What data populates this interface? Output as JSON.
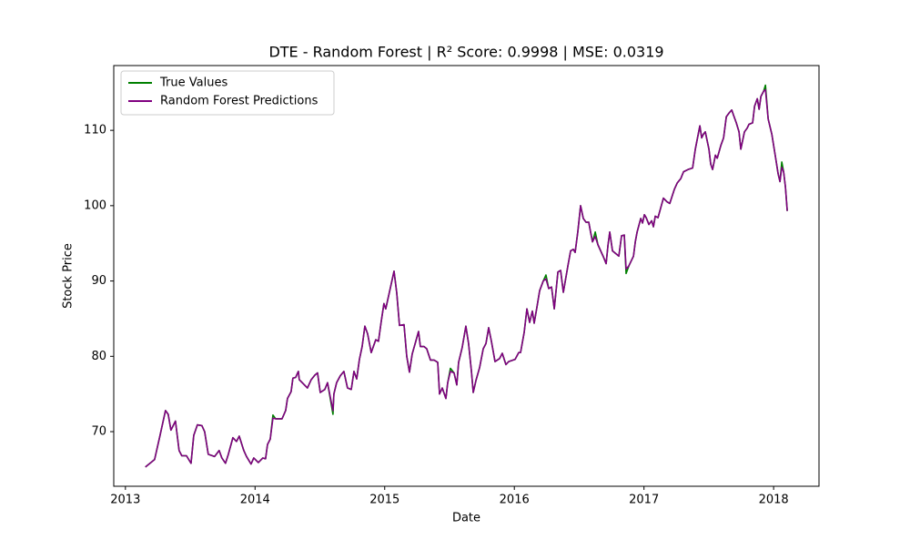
{
  "chart_data": {
    "type": "line",
    "title": "DTE - Random Forest | R² Score: 0.9998 | MSE: 0.0319",
    "xlabel": "Date",
    "ylabel": "Stock Price",
    "x": [
      2013.154,
      2013.225,
      2013.267,
      2013.309,
      2013.33,
      2013.351,
      2013.386,
      2013.414,
      2013.435,
      2013.471,
      2013.506,
      2013.527,
      2013.555,
      2013.59,
      2013.611,
      2013.639,
      2013.688,
      2013.723,
      2013.744,
      2013.772,
      2013.794,
      2013.829,
      2013.857,
      2013.878,
      2013.913,
      2013.934,
      2013.969,
      2013.99,
      2014.025,
      2014.06,
      2014.081,
      2014.096,
      2014.117,
      2014.138,
      2014.159,
      2014.208,
      2014.236,
      2014.25,
      2014.278,
      2014.292,
      2014.313,
      2014.334,
      2014.341,
      2014.404,
      2014.433,
      2014.461,
      2014.482,
      2014.503,
      2014.538,
      2014.559,
      2014.601,
      2014.608,
      2014.629,
      2014.657,
      2014.685,
      2014.713,
      2014.742,
      2014.763,
      2014.784,
      2014.805,
      2014.826,
      2014.847,
      2014.868,
      2014.896,
      2014.931,
      2014.952,
      2014.973,
      2014.994,
      2015.008,
      2015.072,
      2015.093,
      2015.114,
      2015.149,
      2015.17,
      2015.191,
      2015.212,
      2015.24,
      2015.261,
      2015.275,
      2015.303,
      2015.324,
      2015.353,
      2015.381,
      2015.409,
      2015.423,
      2015.444,
      2015.472,
      2015.486,
      2015.507,
      2015.535,
      2015.556,
      2015.57,
      2015.598,
      2015.626,
      2015.647,
      2015.669,
      2015.683,
      2015.704,
      2015.732,
      2015.76,
      2015.781,
      2015.802,
      2015.823,
      2015.851,
      2015.886,
      2015.907,
      2015.935,
      2015.956,
      2016.006,
      2016.034,
      2016.048,
      2016.076,
      2016.097,
      2016.118,
      2016.139,
      2016.153,
      2016.174,
      2016.195,
      2016.223,
      2016.244,
      2016.265,
      2016.287,
      2016.308,
      2016.336,
      2016.357,
      2016.378,
      2016.413,
      2016.434,
      2016.455,
      2016.469,
      2016.49,
      2016.511,
      2016.532,
      2016.553,
      2016.574,
      2016.588,
      2016.603,
      2016.624,
      2016.645,
      2016.687,
      2016.708,
      2016.722,
      2016.736,
      2016.757,
      2016.806,
      2016.827,
      2016.848,
      2016.862,
      2016.883,
      2016.919,
      2016.933,
      2016.947,
      2016.975,
      2016.989,
      2017.003,
      2017.017,
      2017.038,
      2017.059,
      2017.073,
      2017.087,
      2017.108,
      2017.129,
      2017.15,
      2017.178,
      2017.199,
      2017.235,
      2017.256,
      2017.284,
      2017.305,
      2017.34,
      2017.375,
      2017.396,
      2017.431,
      2017.445,
      2017.459,
      2017.473,
      2017.501,
      2017.515,
      2017.529,
      2017.551,
      2017.565,
      2017.593,
      2017.614,
      2017.635,
      2017.656,
      2017.677,
      2017.691,
      2017.712,
      2017.733,
      2017.747,
      2017.775,
      2017.796,
      2017.81,
      2017.838,
      2017.853,
      2017.874,
      2017.888,
      2017.902,
      2017.923,
      2017.937,
      2017.958,
      2017.986,
      2018.014,
      2018.035,
      2018.049,
      2018.063,
      2018.077,
      2018.091,
      2018.105
    ],
    "series": [
      {
        "name": "True Values",
        "color": "#008000",
        "values": [
          65.3,
          66.3,
          69.5,
          72.8,
          72.3,
          70.2,
          71.4,
          67.5,
          66.8,
          66.8,
          65.8,
          69.5,
          70.9,
          70.8,
          70.0,
          67.0,
          66.7,
          67.5,
          66.5,
          65.8,
          67.0,
          69.2,
          68.7,
          69.4,
          67.5,
          66.7,
          65.7,
          66.5,
          65.9,
          66.5,
          66.4,
          68.3,
          69.0,
          72.2,
          71.7,
          71.7,
          72.8,
          74.4,
          75.3,
          77.1,
          77.2,
          78.0,
          76.9,
          75.8,
          76.9,
          77.5,
          77.8,
          75.2,
          75.6,
          76.5,
          72.3,
          75.0,
          76.5,
          77.4,
          78.0,
          75.8,
          75.6,
          78.0,
          77.0,
          79.6,
          81.3,
          84.0,
          83.0,
          80.5,
          82.2,
          82.0,
          84.6,
          87.0,
          86.3,
          91.3,
          88.4,
          84.1,
          84.2,
          80.0,
          77.9,
          80.3,
          82.0,
          83.3,
          81.3,
          81.3,
          81.0,
          79.5,
          79.5,
          79.2,
          75.0,
          75.8,
          74.4,
          76.5,
          78.4,
          77.8,
          76.2,
          79.2,
          81.2,
          84.0,
          81.7,
          78.0,
          75.2,
          76.8,
          78.5,
          81.0,
          81.7,
          83.8,
          82.0,
          79.3,
          79.7,
          80.4,
          78.9,
          79.3,
          79.6,
          80.5,
          80.5,
          83.2,
          86.3,
          84.5,
          86.0,
          84.4,
          86.5,
          88.7,
          90.0,
          90.8,
          89.0,
          89.2,
          86.3,
          91.2,
          91.4,
          88.5,
          92.0,
          94.0,
          94.2,
          93.8,
          96.6,
          100.0,
          98.3,
          97.8,
          97.8,
          96.5,
          95.2,
          96.5,
          94.8,
          93.2,
          92.3,
          94.7,
          96.5,
          94.0,
          93.3,
          96.0,
          96.1,
          91.0,
          92.0,
          93.3,
          95.2,
          96.5,
          98.3,
          97.7,
          98.8,
          98.4,
          97.5,
          98.0,
          97.2,
          98.6,
          98.4,
          99.7,
          101.0,
          100.5,
          100.3,
          102.2,
          103.0,
          103.6,
          104.5,
          104.8,
          105.0,
          107.5,
          110.6,
          109.0,
          109.5,
          109.8,
          107.5,
          105.5,
          104.8,
          106.7,
          106.3,
          108.0,
          109.0,
          111.8,
          112.3,
          112.7,
          112.0,
          111.0,
          109.8,
          107.5,
          109.8,
          110.3,
          110.8,
          111.0,
          113.2,
          114.2,
          112.8,
          114.5,
          115.2,
          116.0,
          111.5,
          109.5,
          106.5,
          104.2,
          103.2,
          105.8,
          104.5,
          102.5,
          99.3
        ]
      },
      {
        "name": "Random Forest Predictions",
        "color": "#800080",
        "values": [
          65.3,
          66.3,
          69.5,
          72.8,
          72.3,
          70.2,
          71.4,
          67.5,
          66.8,
          66.8,
          65.8,
          69.5,
          70.9,
          70.8,
          70.0,
          67.0,
          66.7,
          67.5,
          66.5,
          65.8,
          67.0,
          69.2,
          68.7,
          69.4,
          67.5,
          66.7,
          65.7,
          66.5,
          65.9,
          66.5,
          66.4,
          68.3,
          69.0,
          71.8,
          71.7,
          71.7,
          72.8,
          74.4,
          75.3,
          77.1,
          77.2,
          78.0,
          76.9,
          75.8,
          76.9,
          77.5,
          77.8,
          75.2,
          75.6,
          76.5,
          72.8,
          75.0,
          76.5,
          77.4,
          78.0,
          75.8,
          75.6,
          78.0,
          77.0,
          79.6,
          81.3,
          84.0,
          83.0,
          80.5,
          82.2,
          82.0,
          84.6,
          87.0,
          86.3,
          91.3,
          88.4,
          84.1,
          84.2,
          80.0,
          77.9,
          80.3,
          82.0,
          83.3,
          81.3,
          81.3,
          81.0,
          79.5,
          79.5,
          79.2,
          75.0,
          75.8,
          74.4,
          76.5,
          78.0,
          77.8,
          76.2,
          79.2,
          81.2,
          84.0,
          81.7,
          78.0,
          75.2,
          76.8,
          78.5,
          81.0,
          81.7,
          83.8,
          82.0,
          79.3,
          79.7,
          80.4,
          78.9,
          79.3,
          79.6,
          80.5,
          80.5,
          83.2,
          86.3,
          84.5,
          86.0,
          84.4,
          86.5,
          88.7,
          90.0,
          90.3,
          89.0,
          89.2,
          86.3,
          91.2,
          91.4,
          88.5,
          92.0,
          94.0,
          94.2,
          93.8,
          96.6,
          100.0,
          98.3,
          97.8,
          97.8,
          96.5,
          95.2,
          95.9,
          94.8,
          93.2,
          92.3,
          94.7,
          96.5,
          94.0,
          93.3,
          96.0,
          96.1,
          91.6,
          92.0,
          93.3,
          95.2,
          96.5,
          98.3,
          97.7,
          98.8,
          98.4,
          97.5,
          98.0,
          97.2,
          98.6,
          98.4,
          99.7,
          101.0,
          100.5,
          100.3,
          102.2,
          103.0,
          103.6,
          104.5,
          104.8,
          105.0,
          107.5,
          110.6,
          109.0,
          109.5,
          109.8,
          107.5,
          105.5,
          104.8,
          106.7,
          106.3,
          108.0,
          109.0,
          111.8,
          112.3,
          112.7,
          112.0,
          111.0,
          109.8,
          107.5,
          109.8,
          110.3,
          110.8,
          111.0,
          113.2,
          114.2,
          112.8,
          114.5,
          115.2,
          115.4,
          111.5,
          109.5,
          106.5,
          104.2,
          103.2,
          105.1,
          104.5,
          102.5,
          99.3
        ]
      }
    ],
    "xlim": [
      2012.91,
      2018.35
    ],
    "xticks": [
      2013,
      2014,
      2015,
      2016,
      2017,
      2018
    ],
    "ylim": [
      62.75,
      118.6
    ],
    "yticks": [
      70,
      80,
      90,
      100,
      110
    ],
    "legend": "upper left"
  }
}
